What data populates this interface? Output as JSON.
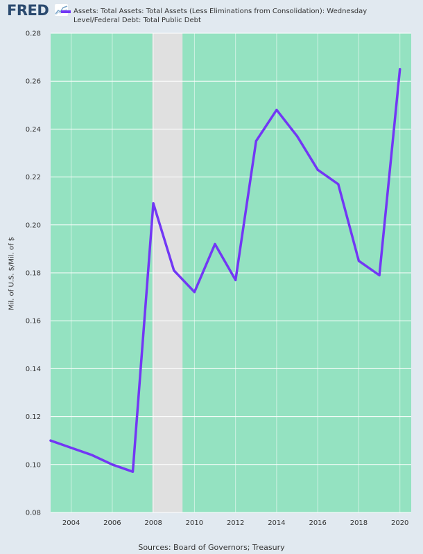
{
  "header": {
    "logo_text": "FRED",
    "legend_label": "Assets: Total Assets: Total Assets (Less Eliminations from Consolidation): Wednesday\nLevel/Federal Debt: Total Public Debt"
  },
  "footer": {
    "sources": "Sources: Board of Governors; Treasury"
  },
  "colors": {
    "plot_background": "#94e2c1",
    "recession_band": "#e0e0e0",
    "series_line": "#7237f5",
    "page_background": "#e1e9f0"
  },
  "chart_data": {
    "type": "line",
    "title": "",
    "ylabel": "Mil. of U.S. $/Mil. of $",
    "xlabel": "",
    "xlim": [
      2003.0,
      2020.55
    ],
    "ylim": [
      0.08,
      0.28
    ],
    "x_ticks": [
      2004,
      2006,
      2008,
      2010,
      2012,
      2014,
      2016,
      2018,
      2020
    ],
    "y_ticks": [
      0.08,
      0.1,
      0.12,
      0.14,
      0.16,
      0.18,
      0.2,
      0.22,
      0.24,
      0.26,
      0.28
    ],
    "y_tick_labels": [
      "0.08",
      "0.10",
      "0.12",
      "0.14",
      "0.16",
      "0.18",
      "0.20",
      "0.22",
      "0.24",
      "0.26",
      "0.28"
    ],
    "grid": true,
    "legend_position": "top",
    "recession_shading": [
      [
        2007.95,
        2009.42
      ]
    ],
    "series": [
      {
        "name": "Assets: Total Assets: Total Assets (Less Eliminations from Consolidation): Wednesday Level/Federal Debt: Total Public Debt",
        "x": [
          2003.0,
          2004.0,
          2005.0,
          2006.0,
          2007.0,
          2008.0,
          2009.0,
          2010.0,
          2011.0,
          2012.0,
          2013.0,
          2014.0,
          2015.0,
          2016.0,
          2017.0,
          2018.0,
          2019.0,
          2020.0
        ],
        "values": [
          0.11,
          0.107,
          0.104,
          0.1,
          0.097,
          0.209,
          0.181,
          0.172,
          0.192,
          0.177,
          0.235,
          0.248,
          0.237,
          0.223,
          0.217,
          0.185,
          0.179,
          0.265
        ]
      }
    ]
  }
}
